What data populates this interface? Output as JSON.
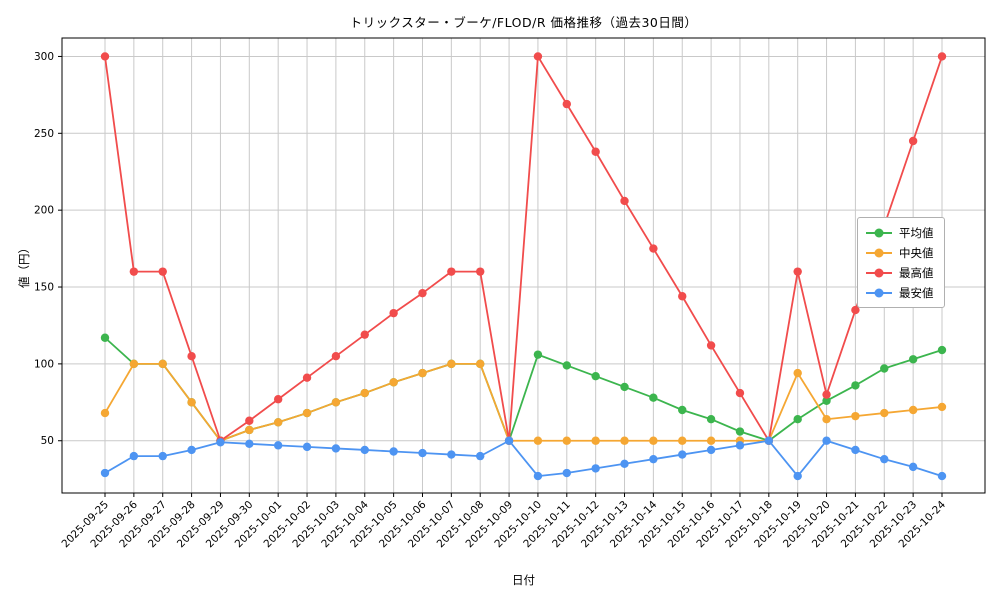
{
  "chart_data": {
    "type": "line",
    "title": "トリックスター・ブーケ/FLOD/R 価格推移（過去30日間）",
    "xlabel": "日付",
    "ylabel": "値（円）",
    "grid": true,
    "legend_position": "center-right",
    "yticks": [
      50,
      100,
      150,
      200,
      250,
      300
    ],
    "ylim": [
      16,
      312
    ],
    "colors": {
      "grid": "#c9c9c9",
      "frame": "#000000",
      "background": "#ffffff"
    },
    "categories": [
      "2025-09-25",
      "2025-09-26",
      "2025-09-27",
      "2025-09-28",
      "2025-09-29",
      "2025-09-30",
      "2025-10-01",
      "2025-10-02",
      "2025-10-03",
      "2025-10-04",
      "2025-10-05",
      "2025-10-06",
      "2025-10-07",
      "2025-10-08",
      "2025-10-09",
      "2025-10-10",
      "2025-10-11",
      "2025-10-12",
      "2025-10-13",
      "2025-10-14",
      "2025-10-15",
      "2025-10-16",
      "2025-10-17",
      "2025-10-18",
      "2025-10-19",
      "2025-10-20",
      "2025-10-21",
      "2025-10-22",
      "2025-10-23",
      "2025-10-24"
    ],
    "series": [
      {
        "key": "average",
        "name": "平均値",
        "color": "#3cb54e",
        "values": [
          117,
          100,
          100,
          75,
          50,
          57,
          62,
          68,
          75,
          81,
          88,
          94,
          100,
          100,
          50,
          106,
          99,
          92,
          85,
          78,
          70,
          64,
          56,
          50,
          64,
          76,
          86,
          97,
          103,
          109
        ]
      },
      {
        "key": "median",
        "name": "中央値",
        "color": "#f5a733",
        "values": [
          68,
          100,
          100,
          75,
          50,
          57,
          62,
          68,
          75,
          81,
          88,
          94,
          100,
          100,
          50,
          50,
          50,
          50,
          50,
          50,
          50,
          50,
          50,
          50,
          94,
          64,
          66,
          68,
          70,
          72
        ]
      },
      {
        "key": "max",
        "name": "最高値",
        "color": "#f14c4c",
        "values": [
          300,
          160,
          160,
          105,
          50,
          63,
          77,
          91,
          105,
          119,
          133,
          146,
          160,
          160,
          50,
          300,
          269,
          238,
          206,
          175,
          144,
          112,
          81,
          50,
          160,
          80,
          135,
          190,
          245,
          300
        ]
      },
      {
        "key": "min",
        "name": "最安値",
        "color": "#4d94f2",
        "values": [
          29,
          40,
          40,
          44,
          49,
          48,
          47,
          46,
          45,
          44,
          43,
          42,
          41,
          40,
          50,
          27,
          29,
          32,
          35,
          38,
          41,
          44,
          47,
          50,
          27,
          50,
          44,
          38,
          33,
          27
        ]
      }
    ]
  }
}
